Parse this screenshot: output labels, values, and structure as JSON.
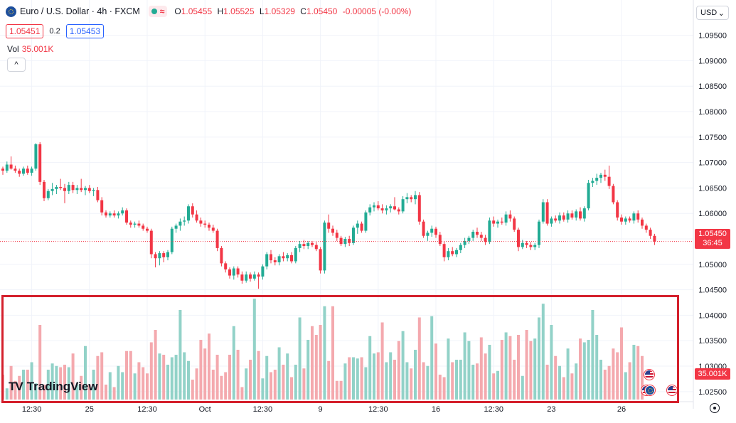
{
  "header": {
    "symbol": "Euro / U.S. Dollar · 4h · FXCM",
    "wave_icon": "≈",
    "ohlc": [
      {
        "k": "O",
        "v": "1.05455"
      },
      {
        "k": "H",
        "v": "1.05525"
      },
      {
        "k": "L",
        "v": "1.05329"
      },
      {
        "k": "C",
        "v": "1.05450"
      },
      {
        "k": "",
        "v": "-0.00005 (-0.00%)"
      }
    ],
    "bid": "1.05451",
    "spread": "0.2",
    "ask": "1.05453",
    "vol_label": "Vol",
    "vol_value": "35.001K",
    "collapse_icon": "chevron-up-icon"
  },
  "currency": {
    "label": "USD"
  },
  "price_tag": {
    "price": "1.05450",
    "countdown": "36:45"
  },
  "volume_tag": "35.001K",
  "logo": {
    "mark": "TV",
    "text": "TradingView"
  },
  "colors": {
    "up": "#22ab94",
    "down": "#f23645",
    "up_vol": "#92d2c8",
    "down_vol": "#f4a9ae",
    "highlight": "#d4202c"
  },
  "chart_data": {
    "type": "candlestick",
    "y_ticks": [
      "1.09500",
      "1.09000",
      "1.08500",
      "1.08000",
      "1.07500",
      "1.07000",
      "1.06500",
      "1.06000",
      "1.05500",
      "1.05000",
      "1.04500",
      "1.04000",
      "1.03500",
      "1.03000",
      "1.02500"
    ],
    "ylim": [
      1.022,
      1.099
    ],
    "x_ticks": [
      {
        "label": "12:30",
        "i": 7
      },
      {
        "label": "25",
        "i": 21
      },
      {
        "label": "12:30",
        "i": 35
      },
      {
        "label": "Oct",
        "i": 49
      },
      {
        "label": "12:30",
        "i": 63
      },
      {
        "label": "9",
        "i": 77
      },
      {
        "label": "12:30",
        "i": 91
      },
      {
        "label": "16",
        "i": 105
      },
      {
        "label": "12:30",
        "i": 119
      },
      {
        "label": "23",
        "i": 133
      },
      {
        "label": "26",
        "i": 150
      }
    ],
    "last_close": 1.0545,
    "ohlc": [
      [
        1.0688,
        1.0692,
        1.0676,
        1.0684
      ],
      [
        1.0684,
        1.0702,
        1.068,
        1.0696
      ],
      [
        1.0696,
        1.0712,
        1.0686,
        1.0688
      ],
      [
        1.0688,
        1.0694,
        1.068,
        1.0684
      ],
      [
        1.0684,
        1.0688,
        1.0672,
        1.0678
      ],
      [
        1.0678,
        1.0692,
        1.0674,
        1.0688
      ],
      [
        1.0688,
        1.0694,
        1.0676,
        1.068
      ],
      [
        1.068,
        1.0692,
        1.0674,
        1.0688
      ],
      [
        1.0688,
        1.0738,
        1.0684,
        1.0736
      ],
      [
        1.0736,
        1.074,
        1.0656,
        1.0662
      ],
      [
        1.0662,
        1.0666,
        1.0624,
        1.063
      ],
      [
        1.063,
        1.0648,
        1.0626,
        1.0644
      ],
      [
        1.0644,
        1.066,
        1.0636,
        1.0648
      ],
      [
        1.0648,
        1.0656,
        1.0638,
        1.0652
      ],
      [
        1.0652,
        1.0668,
        1.0646,
        1.065
      ],
      [
        1.065,
        1.0658,
        1.062,
        1.0644
      ],
      [
        1.0644,
        1.0662,
        1.0638,
        1.0656
      ],
      [
        1.0656,
        1.0662,
        1.064,
        1.0646
      ],
      [
        1.0646,
        1.0656,
        1.0638,
        1.065
      ],
      [
        1.065,
        1.0668,
        1.0642,
        1.0646
      ],
      [
        1.0646,
        1.0654,
        1.0636,
        1.065
      ],
      [
        1.065,
        1.0656,
        1.064,
        1.0644
      ],
      [
        1.0644,
        1.065,
        1.0634,
        1.0646
      ],
      [
        1.0646,
        1.0652,
        1.0622,
        1.0626
      ],
      [
        1.0626,
        1.0632,
        1.0596,
        1.0602
      ],
      [
        1.0602,
        1.0606,
        1.0592,
        1.0596
      ],
      [
        1.0596,
        1.0604,
        1.0592,
        1.06
      ],
      [
        1.06,
        1.0606,
        1.0592,
        1.0596
      ],
      [
        1.0596,
        1.0604,
        1.059,
        1.06
      ],
      [
        1.06,
        1.0612,
        1.0596,
        1.0606
      ],
      [
        1.0606,
        1.061,
        1.0578,
        1.0582
      ],
      [
        1.0582,
        1.0586,
        1.0572,
        1.0578
      ],
      [
        1.0578,
        1.0584,
        1.0572,
        1.058
      ],
      [
        1.058,
        1.0586,
        1.0572,
        1.0576
      ],
      [
        1.0576,
        1.058,
        1.0566,
        1.057
      ],
      [
        1.057,
        1.0574,
        1.0562,
        1.0566
      ],
      [
        1.0566,
        1.057,
        1.0512,
        1.052
      ],
      [
        1.052,
        1.0524,
        1.0494,
        1.0512
      ],
      [
        1.0512,
        1.0526,
        1.0498,
        1.0522
      ],
      [
        1.0522,
        1.0526,
        1.0504,
        1.0514
      ],
      [
        1.0514,
        1.0528,
        1.0508,
        1.0524
      ],
      [
        1.0524,
        1.0574,
        1.052,
        1.057
      ],
      [
        1.057,
        1.058,
        1.0562,
        1.0576
      ],
      [
        1.0576,
        1.059,
        1.0566,
        1.0584
      ],
      [
        1.0584,
        1.0594,
        1.0576,
        1.0586
      ],
      [
        1.0586,
        1.0618,
        1.058,
        1.0614
      ],
      [
        1.0614,
        1.062,
        1.0592,
        1.0598
      ],
      [
        1.0598,
        1.0606,
        1.0582,
        1.0586
      ],
      [
        1.0586,
        1.0592,
        1.0574,
        1.058
      ],
      [
        1.058,
        1.0586,
        1.0572,
        1.0578
      ],
      [
        1.0578,
        1.0582,
        1.0566,
        1.0572
      ],
      [
        1.0572,
        1.0578,
        1.0562,
        1.0566
      ],
      [
        1.0566,
        1.057,
        1.0526,
        1.0532
      ],
      [
        1.0532,
        1.0536,
        1.0496,
        1.0502
      ],
      [
        1.0502,
        1.0506,
        1.0484,
        1.049
      ],
      [
        1.049,
        1.0494,
        1.0472,
        1.0478
      ],
      [
        1.0478,
        1.0496,
        1.047,
        1.0492
      ],
      [
        1.0492,
        1.0496,
        1.0474,
        1.048
      ],
      [
        1.048,
        1.0486,
        1.0462,
        1.0468
      ],
      [
        1.0468,
        1.0486,
        1.0464,
        1.048
      ],
      [
        1.048,
        1.0484,
        1.0466,
        1.0472
      ],
      [
        1.0472,
        1.0486,
        1.0468,
        1.048
      ],
      [
        1.048,
        1.0484,
        1.0452,
        1.0476
      ],
      [
        1.0476,
        1.05,
        1.047,
        1.0496
      ],
      [
        1.0496,
        1.0524,
        1.049,
        1.052
      ],
      [
        1.052,
        1.0528,
        1.0502,
        1.0508
      ],
      [
        1.0508,
        1.0514,
        1.0498,
        1.0504
      ],
      [
        1.0504,
        1.052,
        1.0498,
        1.0516
      ],
      [
        1.0516,
        1.0524,
        1.0506,
        1.0512
      ],
      [
        1.0512,
        1.0522,
        1.0506,
        1.0518
      ],
      [
        1.0518,
        1.0524,
        1.0502,
        1.0506
      ],
      [
        1.0506,
        1.0536,
        1.0502,
        1.0532
      ],
      [
        1.0532,
        1.0546,
        1.0524,
        1.054
      ],
      [
        1.054,
        1.0548,
        1.053,
        1.0536
      ],
      [
        1.0536,
        1.0546,
        1.053,
        1.0542
      ],
      [
        1.0542,
        1.0546,
        1.0534,
        1.0538
      ],
      [
        1.0538,
        1.0544,
        1.0526,
        1.053
      ],
      [
        1.053,
        1.0534,
        1.0482,
        1.0488
      ],
      [
        1.0488,
        1.0586,
        1.0482,
        1.0582
      ],
      [
        1.0582,
        1.0598,
        1.0562,
        1.057
      ],
      [
        1.057,
        1.0576,
        1.0556,
        1.0562
      ],
      [
        1.0562,
        1.0568,
        1.0546,
        1.0552
      ],
      [
        1.0552,
        1.0556,
        1.0536,
        1.054
      ],
      [
        1.054,
        1.0554,
        1.0534,
        1.055
      ],
      [
        1.055,
        1.0556,
        1.0536,
        1.0542
      ],
      [
        1.0542,
        1.0576,
        1.0538,
        1.0572
      ],
      [
        1.0572,
        1.0586,
        1.056,
        1.058
      ],
      [
        1.058,
        1.0584,
        1.0562,
        1.0566
      ],
      [
        1.0566,
        1.0606,
        1.0562,
        1.0602
      ],
      [
        1.0602,
        1.0618,
        1.0596,
        1.0612
      ],
      [
        1.0612,
        1.0622,
        1.0604,
        1.0616
      ],
      [
        1.0616,
        1.0624,
        1.0606,
        1.061
      ],
      [
        1.061,
        1.0618,
        1.06,
        1.0606
      ],
      [
        1.0606,
        1.0616,
        1.0598,
        1.061
      ],
      [
        1.061,
        1.0618,
        1.0602,
        1.0614
      ],
      [
        1.0614,
        1.0632,
        1.0606,
        1.0608
      ],
      [
        1.0608,
        1.0612,
        1.0598,
        1.0604
      ],
      [
        1.0604,
        1.0634,
        1.06,
        1.0628
      ],
      [
        1.0628,
        1.064,
        1.062,
        1.0632
      ],
      [
        1.0632,
        1.0636,
        1.0622,
        1.0628
      ],
      [
        1.0628,
        1.0644,
        1.0618,
        1.0636
      ],
      [
        1.0636,
        1.0642,
        1.0578,
        1.0584
      ],
      [
        1.0584,
        1.0588,
        1.0552,
        1.0556
      ],
      [
        1.0556,
        1.0566,
        1.0546,
        1.0562
      ],
      [
        1.0562,
        1.0576,
        1.0554,
        1.057
      ],
      [
        1.057,
        1.0574,
        1.0552,
        1.0558
      ],
      [
        1.0558,
        1.0564,
        1.0536,
        1.054
      ],
      [
        1.054,
        1.0546,
        1.0506,
        1.0514
      ],
      [
        1.0514,
        1.0532,
        1.0508,
        1.0526
      ],
      [
        1.0526,
        1.0534,
        1.0516,
        1.052
      ],
      [
        1.052,
        1.0532,
        1.0514,
        1.0528
      ],
      [
        1.0528,
        1.0542,
        1.0522,
        1.0538
      ],
      [
        1.0538,
        1.0552,
        1.0532,
        1.0546
      ],
      [
        1.0546,
        1.0556,
        1.054,
        1.0552
      ],
      [
        1.0552,
        1.0568,
        1.0546,
        1.0564
      ],
      [
        1.0564,
        1.0572,
        1.0552,
        1.0558
      ],
      [
        1.0558,
        1.0564,
        1.0546,
        1.0552
      ],
      [
        1.0552,
        1.0558,
        1.0538,
        1.0544
      ],
      [
        1.0544,
        1.0592,
        1.054,
        1.0586
      ],
      [
        1.0586,
        1.0594,
        1.0574,
        1.058
      ],
      [
        1.058,
        1.0588,
        1.0572,
        1.0584
      ],
      [
        1.0584,
        1.0592,
        1.0578,
        1.0582
      ],
      [
        1.0582,
        1.0604,
        1.0576,
        1.0598
      ],
      [
        1.0598,
        1.0606,
        1.0584,
        1.059
      ],
      [
        1.059,
        1.0594,
        1.0564,
        1.0568
      ],
      [
        1.0568,
        1.0572,
        1.0526,
        1.0534
      ],
      [
        1.0534,
        1.0548,
        1.053,
        1.0542
      ],
      [
        1.0542,
        1.0546,
        1.0532,
        1.0538
      ],
      [
        1.0538,
        1.0544,
        1.0528,
        1.0534
      ],
      [
        1.0534,
        1.0542,
        1.0528,
        1.0538
      ],
      [
        1.0538,
        1.0588,
        1.0532,
        1.0584
      ],
      [
        1.0584,
        1.0628,
        1.058,
        1.0622
      ],
      [
        1.0622,
        1.0628,
        1.0576,
        1.058
      ],
      [
        1.058,
        1.0594,
        1.0574,
        1.059
      ],
      [
        1.059,
        1.0596,
        1.0582,
        1.0586
      ],
      [
        1.0586,
        1.0602,
        1.058,
        1.0596
      ],
      [
        1.0596,
        1.0602,
        1.0584,
        1.0588
      ],
      [
        1.0588,
        1.0606,
        1.0582,
        1.06
      ],
      [
        1.06,
        1.0606,
        1.0588,
        1.0592
      ],
      [
        1.0592,
        1.0608,
        1.0586,
        1.0604
      ],
      [
        1.0604,
        1.0612,
        1.0586,
        1.059
      ],
      [
        1.059,
        1.0614,
        1.0584,
        1.061
      ],
      [
        1.061,
        1.0666,
        1.0606,
        1.066
      ],
      [
        1.066,
        1.067,
        1.0652,
        1.0664
      ],
      [
        1.0664,
        1.0678,
        1.0656,
        1.067
      ],
      [
        1.067,
        1.068,
        1.066,
        1.0676
      ],
      [
        1.0676,
        1.0686,
        1.0664,
        1.0672
      ],
      [
        1.0672,
        1.0694,
        1.0648,
        1.0654
      ],
      [
        1.0654,
        1.0658,
        1.0618,
        1.0622
      ],
      [
        1.0622,
        1.0626,
        1.0586,
        1.0592
      ],
      [
        1.0592,
        1.0598,
        1.0578,
        1.0584
      ],
      [
        1.0584,
        1.0594,
        1.0578,
        1.059
      ],
      [
        1.059,
        1.0594,
        1.0582,
        1.0586
      ],
      [
        1.0586,
        1.0604,
        1.058,
        1.06
      ],
      [
        1.06,
        1.0606,
        1.0582,
        1.0588
      ],
      [
        1.0588,
        1.0592,
        1.057,
        1.0576
      ],
      [
        1.0576,
        1.058,
        1.0562,
        1.0568
      ],
      [
        1.0568,
        1.0572,
        1.055,
        1.0556
      ],
      [
        1.0556,
        1.056,
        1.0538,
        1.0545
      ]
    ],
    "volume": [
      20,
      9,
      27,
      15,
      19,
      24,
      24,
      30,
      13,
      60,
      12,
      24,
      29,
      27,
      26,
      28,
      26,
      37,
      12,
      19,
      43,
      12,
      24,
      35,
      38,
      12,
      22,
      10,
      27,
      22,
      39,
      39,
      21,
      30,
      26,
      21,
      46,
      56,
      37,
      36,
      28,
      34,
      36,
      72,
      38,
      31,
      16,
      25,
      48,
      41,
      53,
      24,
      36,
      19,
      22,
      36,
      59,
      40,
      10,
      25,
      32,
      81,
      39,
      17,
      35,
      22,
      24,
      42,
      28,
      37,
      18,
      28,
      66,
      25,
      48,
      59,
      52,
      60,
      75,
      31,
      75,
      15,
      15,
      29,
      34,
      34,
      33,
      34,
      26,
      51,
      37,
      38,
      62,
      30,
      38,
      32,
      47,
      55,
      30,
      25,
      40,
      66,
      30,
      27,
      67,
      45,
      20,
      18,
      49,
      30,
      32,
      32,
      54,
      47,
      28,
      29,
      50,
      37,
      44,
      21,
      23,
      48,
      54,
      51,
      32,
      52,
      19,
      56,
      47,
      49,
      66,
      77,
      28,
      60,
      35,
      27,
      18,
      41,
      21,
      29,
      49,
      46,
      48,
      72,
      52,
      32,
      24,
      27,
      41,
      38,
      58,
      22,
      30,
      44,
      43,
      35
    ],
    "volume_ylim": [
      0,
      80
    ]
  }
}
